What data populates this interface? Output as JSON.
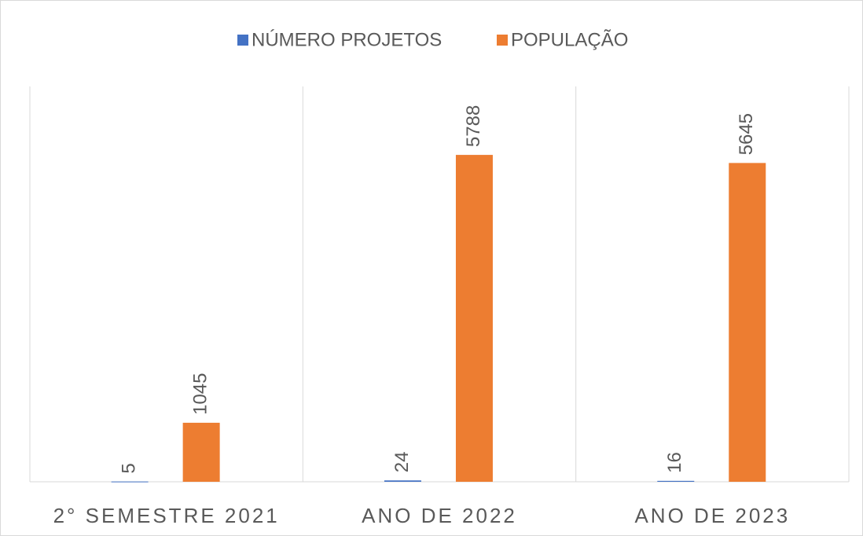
{
  "chart_data": {
    "type": "bar",
    "categories": [
      "2° SEMESTRE 2021",
      "ANO DE 2022",
      "ANO DE 2023"
    ],
    "series": [
      {
        "name": "NÚMERO PROJETOS",
        "color": "#4472c4",
        "values": [
          5,
          24,
          16
        ]
      },
      {
        "name": "POPULAÇÃO",
        "color": "#ed7d31",
        "values": [
          1045,
          5788,
          5645
        ]
      }
    ],
    "ylim": [
      0,
      7000
    ],
    "legend": "top"
  }
}
